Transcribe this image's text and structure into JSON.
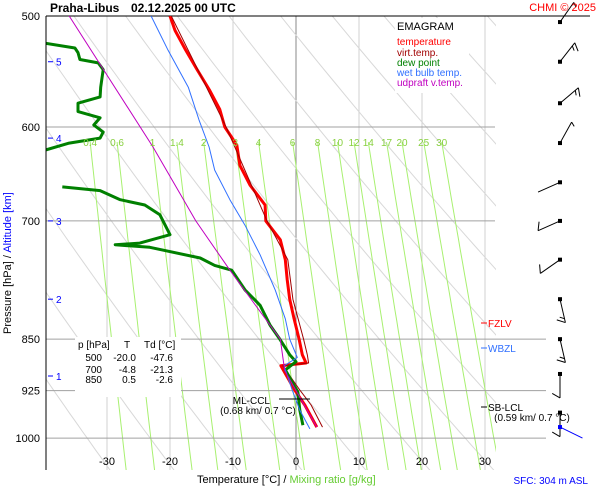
{
  "header": {
    "station": "Praha-Libus",
    "datetime": "02.12.2025 00 UTC",
    "credit": "CHMI © 2025"
  },
  "legend": {
    "title": "EMAGRAM",
    "items": [
      {
        "label": "temperature",
        "color": "#ff0000"
      },
      {
        "label": "virt.temp.",
        "color": "#a00000"
      },
      {
        "label": "dew point",
        "color": "#008000"
      },
      {
        "label": "wet bulb temp.",
        "color": "#3070ff"
      },
      {
        "label": "udpraft v.temp.",
        "color": "#c000c0"
      }
    ]
  },
  "table": {
    "headers": [
      "p [hPa]",
      "T",
      "Td [°C]"
    ],
    "rows": [
      [
        "500",
        "-20.0",
        "-47.6"
      ],
      [
        "700",
        "-4.8",
        "-21.3"
      ],
      [
        "850",
        "0.5",
        "-2.6"
      ]
    ]
  },
  "levels": {
    "fzlv": {
      "label": "FZLV",
      "color": "#ff0000"
    },
    "wbzl": {
      "label": "WBZL",
      "color": "#3070ff"
    },
    "sb_lcl": {
      "label": "SB-LCL",
      "detail": "(0.59 km/ 0.7 °C)"
    },
    "ml_ccl": {
      "label": "ML-CCL",
      "detail": "(0.68 km/ 0.7 °C)"
    }
  },
  "footer": {
    "sfc": "SFC: 304 m ASL"
  },
  "chart_data": {
    "type": "line",
    "title": "Praha-Libus 02.12.2025 00 UTC",
    "xlabel": "Temperature [°C]",
    "xlabel2": "Mixing ratio [g/kg]",
    "ylabel": "Pressure [hPa]",
    "ylabel2": "Altitude [km]",
    "xlim": [
      -39.7,
      31.5
    ],
    "ylim": [
      1054,
      500
    ],
    "y_scale": "log",
    "x_ticks": [
      -30,
      -20,
      -10,
      0,
      10,
      20,
      30
    ],
    "y_ticks": [
      500,
      600,
      700,
      850,
      925,
      1000
    ],
    "altitude_ticks": [
      {
        "km": "5",
        "p": 539
      },
      {
        "km": "4",
        "p": 611
      },
      {
        "km": "3",
        "p": 700
      },
      {
        "km": "2",
        "p": 796
      },
      {
        "km": "1",
        "p": 903
      }
    ],
    "mixing_ratio_lines": [
      "0.4",
      "0.6",
      "1",
      "1.4",
      "2",
      "3",
      "4",
      "6",
      "8",
      "10",
      "12",
      "14",
      "17",
      "20",
      "25",
      "30"
    ],
    "series": [
      {
        "name": "temperature",
        "color": "#ff0000",
        "width": 3,
        "p": [
          500,
          512,
          529,
          546,
          565,
          583,
          600,
          618,
          639,
          660,
          682,
          700,
          722,
          746,
          771,
          796,
          822,
          850,
          872,
          884,
          888,
          924,
          947,
          982
        ],
        "t": [
          -20.0,
          -19.2,
          -17.5,
          -15.7,
          -13.7,
          -12.1,
          -11.3,
          -9.4,
          -8.9,
          -7.3,
          -4.9,
          -4.8,
          -2.5,
          -1.7,
          -1.4,
          -1.0,
          -0.3,
          0.5,
          1.0,
          1.6,
          -2.4,
          -0.2,
          1.4,
          3.3
        ]
      },
      {
        "name": "virt.temp.",
        "color": "#a00000",
        "width": 1,
        "p": [
          500,
          600,
          700,
          746,
          796,
          850,
          872,
          884,
          888,
          924,
          947,
          982
        ],
        "t": [
          -19.8,
          -11.1,
          -4.6,
          -1.3,
          -0.5,
          1.2,
          1.8,
          2.0,
          -2.1,
          0.6,
          2.4,
          4.2
        ]
      },
      {
        "name": "dew point",
        "color": "#008000",
        "width": 3,
        "p": [
          523,
          527,
          531,
          537,
          540,
          546,
          562,
          571,
          577,
          585,
          591,
          598,
          605,
          611,
          616,
          623,
          null,
          662,
          666,
          676,
          682,
          693,
          716,
          726,
          728,
          731,
          744,
          753,
          759,
          784,
          804,
          831,
          851,
          872,
          882,
          894,
          927,
          955,
          979
        ],
        "t": [
          -39.7,
          -35.1,
          -34.6,
          -34.3,
          -31.4,
          -30.6,
          -31.0,
          -31.1,
          -34.6,
          -34.6,
          -31.1,
          -32.1,
          -30.6,
          -31.1,
          -36.0,
          -39.7,
          null,
          -37.1,
          -31.1,
          -27.9,
          -24.0,
          -21.6,
          -20.0,
          -24.8,
          -28.7,
          -23.2,
          -15.2,
          -12.9,
          -10.2,
          -8.1,
          -5.7,
          -4.1,
          -2.5,
          -1.0,
          0.0,
          -1.7,
          0.3,
          0.6,
          1.1
        ]
      },
      {
        "name": "wet bulb temp.",
        "color": "#3070ff",
        "width": 1,
        "p": [
          500,
          529,
          562,
          593,
          620,
          644,
          676,
          705,
          740,
          784,
          822,
          850,
          876,
          888,
          924,
          955,
          985
        ],
        "t": [
          -23.0,
          -20.3,
          -17.1,
          -15.4,
          -13.8,
          -12.9,
          -10.5,
          -8.1,
          -5.7,
          -3.3,
          -1.7,
          -1.0,
          0.2,
          -1.9,
          -0.6,
          0.6,
          2.2
        ]
      },
      {
        "name": "udpraft v.temp.",
        "color": "#c000c0",
        "width": 1,
        "p": [
          500,
          620,
          700,
          759,
          850,
          895,
          982
        ],
        "t": [
          -36.0,
          -22.7,
          -15.9,
          -10.5,
          -2.5,
          -1.8,
          3.3
        ]
      }
    ],
    "levels": {
      "fzlv_p": 826,
      "wbzl_p": 863,
      "sb_lcl_p": 947,
      "ml_ccl_p": 936
    },
    "wind_barbs": [
      {
        "p": 505,
        "dir": 35,
        "kt": 5
      },
      {
        "p": 539,
        "dir": 38,
        "kt": 15
      },
      {
        "p": 577,
        "dir": 50,
        "kt": 15
      },
      {
        "p": 616,
        "dir": 29,
        "kt": 5
      },
      {
        "p": 657,
        "dir": 246,
        "kt": 2
      },
      {
        "p": 700,
        "dir": 246,
        "kt": 10
      },
      {
        "p": 746,
        "dir": 235,
        "kt": 10
      },
      {
        "p": 796,
        "dir": 167,
        "kt": 15
      },
      {
        "p": 850,
        "dir": 167,
        "kt": 15
      },
      {
        "p": 900,
        "dir": 180,
        "kt": 10
      },
      {
        "p": 959,
        "dir": 180,
        "kt": 10
      }
    ],
    "surface_wind": {
      "p": 982,
      "dir": 116,
      "color": "#0000ff"
    },
    "grid": true
  }
}
